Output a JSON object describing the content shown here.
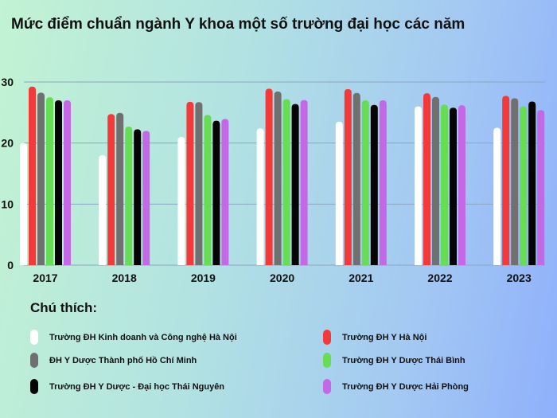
{
  "chart_data": {
    "type": "bar",
    "title": "Mức điểm chuẩn ngành Y khoa một số trường đại học các năm",
    "categories": [
      "2017",
      "2018",
      "2019",
      "2020",
      "2021",
      "2022",
      "2023"
    ],
    "ylim": [
      0,
      30
    ],
    "yticks": [
      "0",
      "10",
      "20",
      "30"
    ],
    "grid": true,
    "legend_title": "Chú thích:",
    "legend_position": "bottom",
    "series": [
      {
        "name": "Trường ĐH Kinh doanh và Công nghệ Hà Nội",
        "color": "#ffffff",
        "values": [
          20,
          18,
          21,
          22.4,
          23.5,
          26,
          22.5
        ]
      },
      {
        "name": "Trường ĐH Y Hà Nội",
        "color": "#f23a3a",
        "values": [
          29.25,
          24.75,
          26.75,
          28.9,
          28.85,
          28.15,
          27.73
        ]
      },
      {
        "name": "ĐH Y Dược Thành phố Hồ Chí Minh",
        "color": "#707070",
        "values": [
          28.25,
          24.95,
          26.7,
          28.45,
          28.2,
          27.55,
          27.34
        ]
      },
      {
        "name": "Trường ĐH Y Dược Thái Bình",
        "color": "#66dd55",
        "values": [
          27.5,
          22.7,
          24.6,
          27.2,
          27,
          26.3,
          26
        ]
      },
      {
        "name": "Trường ĐH Y Dược - Đại học Thái Nguyên",
        "color": "#050505",
        "values": [
          27,
          22.25,
          23.65,
          26.4,
          26.25,
          25.8,
          26.8
        ]
      },
      {
        "name": "Trường ĐH Y Dược Hải Phòng",
        "color": "#c469e6",
        "values": [
          27,
          22,
          23.95,
          27.05,
          27,
          26.2,
          25.4
        ]
      }
    ]
  }
}
